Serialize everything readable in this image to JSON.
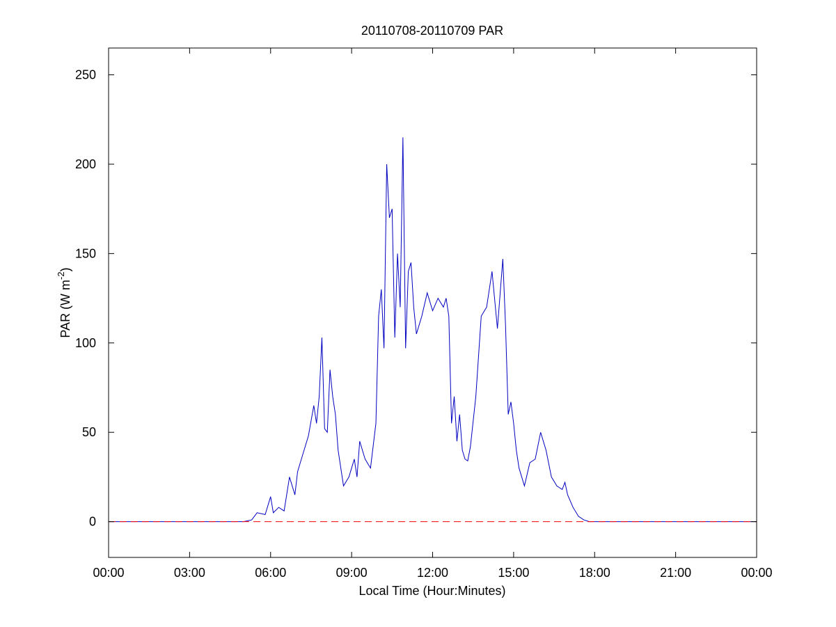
{
  "chart_data": {
    "type": "line",
    "title": "20110708-20110709 PAR",
    "xlabel": "Local Time (Hour:Minutes)",
    "ylabel_main": "PAR (W m",
    "ylabel_sup": "-2",
    "ylabel_close": ")",
    "xlim": [
      0,
      24
    ],
    "ylim": [
      -20,
      265
    ],
    "xticks": [
      0,
      3,
      6,
      9,
      12,
      15,
      18,
      21,
      24
    ],
    "xticklabels": [
      "00:00",
      "03:00",
      "06:00",
      "09:00",
      "12:00",
      "15:00",
      "18:00",
      "21:00",
      "00:00"
    ],
    "yticks": [
      0,
      50,
      100,
      150,
      200,
      250
    ],
    "yticklabels": [
      "0",
      "50",
      "100",
      "150",
      "200",
      "250"
    ],
    "grid": false,
    "series": [
      {
        "color": "#0000c0",
        "style": "solid",
        "x": [
          0,
          5.0,
          5.3,
          5.5,
          5.8,
          6.0,
          6.1,
          6.3,
          6.5,
          6.7,
          6.9,
          7.0,
          7.2,
          7.4,
          7.6,
          7.7,
          7.8,
          7.9,
          8.0,
          8.1,
          8.2,
          8.3,
          8.4,
          8.5,
          8.7,
          8.9,
          9.0,
          9.1,
          9.2,
          9.3,
          9.5,
          9.7,
          9.9,
          10.0,
          10.1,
          10.2,
          10.3,
          10.4,
          10.5,
          10.6,
          10.7,
          10.8,
          10.9,
          11.0,
          11.1,
          11.2,
          11.3,
          11.4,
          11.6,
          11.8,
          12.0,
          12.2,
          12.4,
          12.5,
          12.6,
          12.7,
          12.8,
          12.9,
          13.0,
          13.1,
          13.2,
          13.3,
          13.4,
          13.6,
          13.8,
          14.0,
          14.2,
          14.4,
          14.6,
          14.7,
          14.8,
          14.9,
          15.0,
          15.1,
          15.2,
          15.4,
          15.6,
          15.8,
          16.0,
          16.2,
          16.4,
          16.6,
          16.8,
          16.9,
          17.0,
          17.2,
          17.4,
          17.6,
          17.8,
          18.0,
          18.2,
          18.5,
          18.8,
          19.0,
          19.2,
          19.5,
          24
        ],
        "y": [
          0,
          0,
          1,
          5,
          4,
          14,
          5,
          8,
          6,
          25,
          15,
          28,
          38,
          48,
          65,
          55,
          70,
          103,
          52,
          50,
          85,
          70,
          60,
          40,
          20,
          25,
          30,
          35,
          25,
          45,
          35,
          30,
          55,
          115,
          130,
          97,
          200,
          170,
          175,
          103,
          150,
          120,
          215,
          97,
          140,
          145,
          120,
          105,
          115,
          128,
          118,
          125,
          120,
          125,
          115,
          55,
          70,
          45,
          60,
          40,
          35,
          34,
          42,
          70,
          115,
          120,
          140,
          108,
          147,
          110,
          60,
          67,
          55,
          40,
          30,
          20,
          33,
          35,
          50,
          40,
          25,
          20,
          18,
          22,
          15,
          8,
          3,
          1,
          0,
          0,
          0,
          0,
          0,
          0,
          0,
          0,
          0
        ]
      },
      {
        "color": "#ff0000",
        "style": "dashed",
        "x": [
          0,
          24
        ],
        "y": [
          0,
          0
        ]
      }
    ]
  }
}
